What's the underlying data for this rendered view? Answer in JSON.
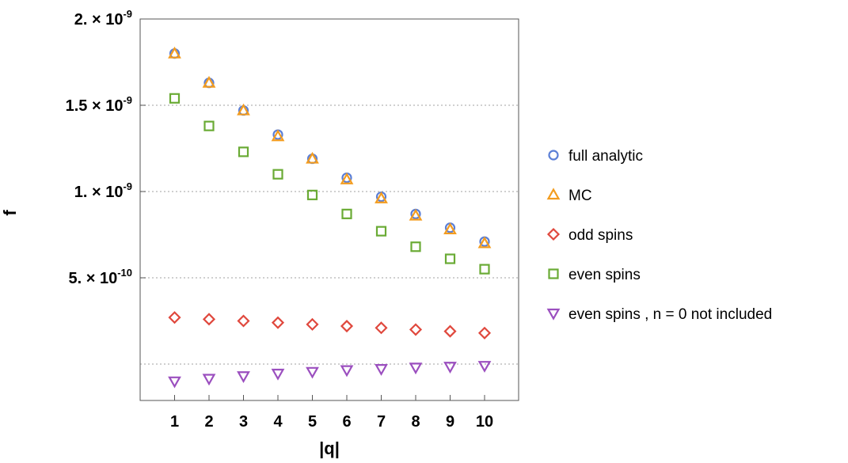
{
  "chart_data": {
    "type": "scatter",
    "title": "",
    "xlabel": "|q|",
    "ylabel": "f",
    "xlim": [
      0,
      11
    ],
    "ylim": [
      0,
      2e-09
    ],
    "x": [
      1,
      2,
      3,
      4,
      5,
      6,
      7,
      8,
      9,
      10
    ],
    "x_tick_labels": [
      "1",
      "2",
      "3",
      "4",
      "5",
      "6",
      "7",
      "8",
      "9",
      "10"
    ],
    "y_ticks": [
      {
        "value": 2e-09,
        "mantissa": "2.",
        "exponent": "-9"
      },
      {
        "value": 1.5e-09,
        "mantissa": "1.5",
        "exponent": "-9"
      },
      {
        "value": 1e-09,
        "mantissa": "1.",
        "exponent": "-9"
      },
      {
        "value": 5e-10,
        "mantissa": "5.",
        "exponent": "-10"
      }
    ],
    "times_sign": "×",
    "tick_base": "10",
    "gridlines_y": [
      1.5e-09,
      1e-09,
      5e-10,
      0
    ],
    "grid": "horizontal dotted",
    "legend_position": "right",
    "series": [
      {
        "name": "full analytic",
        "marker": "circle",
        "color": "#5b7fd6",
        "values": [
          1.8e-09,
          1.63e-09,
          1.47e-09,
          1.33e-09,
          1.19e-09,
          1.08e-09,
          9.7e-10,
          8.7e-10,
          7.9e-10,
          7.1e-10
        ]
      },
      {
        "name": "MC",
        "marker": "triangle-up",
        "color": "#f39c1f",
        "values": [
          1.8e-09,
          1.63e-09,
          1.47e-09,
          1.32e-09,
          1.19e-09,
          1.07e-09,
          9.6e-10,
          8.6e-10,
          7.8e-10,
          7e-10
        ]
      },
      {
        "name": "odd spins",
        "marker": "diamond",
        "color": "#e0483d",
        "values": [
          2.7e-10,
          2.6e-10,
          2.5e-10,
          2.4e-10,
          2.3e-10,
          2.2e-10,
          2.1e-10,
          2e-10,
          1.9e-10,
          1.8e-10
        ]
      },
      {
        "name": "even spins",
        "marker": "square",
        "color": "#6aab35",
        "values": [
          1.54e-09,
          1.38e-09,
          1.23e-09,
          1.1e-09,
          9.8e-10,
          8.7e-10,
          7.7e-10,
          6.8e-10,
          6.1e-10,
          5.5e-10
        ]
      },
      {
        "name": "even spins , n = 0 not included",
        "marker": "triangle-down",
        "color": "#9b4fbf",
        "values": [
          -1e-10,
          -8.5e-11,
          -7e-11,
          -5.5e-11,
          -4.5e-11,
          -3.5e-11,
          -2.8e-11,
          -2e-11,
          -1.5e-11,
          -1e-11
        ]
      }
    ]
  }
}
